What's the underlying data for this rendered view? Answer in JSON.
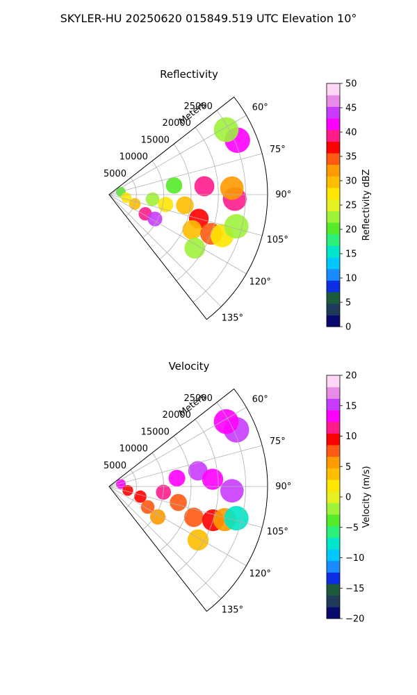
{
  "figure_title": "SKYLER-HU  20250620  015849.519 UTC Elevation 10°",
  "chart_data": [
    {
      "type": "polar_sector",
      "title": "Reflectivity",
      "radial_label": "Meters",
      "radial_ticks": [
        5000,
        10000,
        15000,
        20000,
        25000
      ],
      "radial_tick_labels": [
        "5000",
        "10000",
        "15000",
        "20000",
        "25000"
      ],
      "rmax": 29000,
      "theta_range_deg": [
        52,
        142
      ],
      "theta_ticks_deg": [
        60,
        75,
        90,
        105,
        120,
        135
      ],
      "theta_tick_labels": [
        "60°",
        "75°",
        "90°",
        "105°",
        "120°",
        "135°"
      ],
      "grid": true,
      "colorbar": {
        "label": "Reflectivity dBZ",
        "range": [
          0,
          50
        ],
        "ticks": [
          0,
          5,
          10,
          15,
          20,
          25,
          30,
          35,
          40,
          45,
          50
        ],
        "tick_labels": [
          "0",
          "5",
          "10",
          "15",
          "20",
          "25",
          "30",
          "35",
          "40",
          "45",
          "50"
        ],
        "palette": [
          "#0a0a6e",
          "#1f3a5a",
          "#1e5a3c",
          "#0c2fe6",
          "#1a8cff",
          "#00c8ff",
          "#00e6c8",
          "#2cf07a",
          "#55ea2a",
          "#9ff23a",
          "#e6f023",
          "#ffe600",
          "#ffbe00",
          "#ff9a00",
          "#ff5a14",
          "#ff0000",
          "#ff1d8c",
          "#ff00ff",
          "#c83cff",
          "#e68ce6",
          "#ffd7f5"
        ]
      },
      "echoes": [
        {
          "range_m": 2200,
          "az_deg": 77,
          "value": 20
        },
        {
          "range_m": 3200,
          "az_deg": 100,
          "value": 28
        },
        {
          "range_m": 5000,
          "az_deg": 110,
          "value": 30
        },
        {
          "range_m": 7500,
          "az_deg": 118,
          "value": 40
        },
        {
          "range_m": 9500,
          "az_deg": 118,
          "value": 45
        },
        {
          "range_m": 8000,
          "az_deg": 96,
          "value": 22
        },
        {
          "range_m": 10500,
          "az_deg": 100,
          "value": 28
        },
        {
          "range_m": 14000,
          "az_deg": 98,
          "value": 30
        },
        {
          "range_m": 12000,
          "az_deg": 82,
          "value": 20
        },
        {
          "range_m": 17500,
          "az_deg": 85,
          "value": 40
        },
        {
          "range_m": 17000,
          "az_deg": 105,
          "value": 38
        },
        {
          "range_m": 16500,
          "az_deg": 113,
          "value": 30
        },
        {
          "range_m": 20000,
          "az_deg": 111,
          "value": 35
        },
        {
          "range_m": 22000,
          "az_deg": 110,
          "value": 28
        },
        {
          "range_m": 23000,
          "az_deg": 92,
          "value": 40
        },
        {
          "range_m": 22500,
          "az_deg": 87,
          "value": 33
        },
        {
          "range_m": 24000,
          "az_deg": 104,
          "value": 22
        },
        {
          "range_m": 25500,
          "az_deg": 67,
          "value": 42
        },
        {
          "range_m": 24500,
          "az_deg": 61,
          "value": 22
        },
        {
          "range_m": 18500,
          "az_deg": 122,
          "value": 22
        }
      ]
    },
    {
      "type": "polar_sector",
      "title": "Velocity",
      "radial_label": "Meters",
      "radial_ticks": [
        5000,
        10000,
        15000,
        20000,
        25000
      ],
      "radial_tick_labels": [
        "5000",
        "10000",
        "15000",
        "20000",
        "25000"
      ],
      "rmax": 29000,
      "theta_range_deg": [
        52,
        142
      ],
      "theta_ticks_deg": [
        60,
        75,
        90,
        105,
        120,
        135
      ],
      "theta_tick_labels": [
        "60°",
        "75°",
        "90°",
        "105°",
        "120°",
        "135°"
      ],
      "grid": true,
      "colorbar": {
        "label": "Velocity (m/s)",
        "range": [
          -20,
          20
        ],
        "ticks": [
          -20,
          -15,
          -10,
          -5,
          0,
          5,
          10,
          15,
          20
        ],
        "tick_labels": [
          "−20",
          "−15",
          "−10",
          "−5",
          "0",
          "5",
          "10",
          "15",
          "20"
        ],
        "palette": [
          "#0a0a6e",
          "#1f3a5a",
          "#1e5a3c",
          "#0c2fe6",
          "#1a8cff",
          "#00c8ff",
          "#00e6c8",
          "#2cf07a",
          "#55ea2a",
          "#9ff23a",
          "#e6f023",
          "#ffe600",
          "#ffbe00",
          "#ff9a00",
          "#ff5a14",
          "#ff0000",
          "#ff1d8c",
          "#ff00ff",
          "#c83cff",
          "#e68ce6",
          "#ffd7f5"
        ]
      },
      "echoes": [
        {
          "range_m": 2200,
          "az_deg": 78,
          "value": 14
        },
        {
          "range_m": 3500,
          "az_deg": 102,
          "value": 9
        },
        {
          "range_m": 6000,
          "az_deg": 108,
          "value": 10
        },
        {
          "range_m": 8000,
          "az_deg": 118,
          "value": 8
        },
        {
          "range_m": 10500,
          "az_deg": 122,
          "value": 5
        },
        {
          "range_m": 10000,
          "az_deg": 96,
          "value": 11
        },
        {
          "range_m": 13000,
          "az_deg": 103,
          "value": 7
        },
        {
          "range_m": 12500,
          "az_deg": 83,
          "value": 13
        },
        {
          "range_m": 16500,
          "az_deg": 80,
          "value": 15
        },
        {
          "range_m": 19000,
          "az_deg": 86,
          "value": 13
        },
        {
          "range_m": 16500,
          "az_deg": 110,
          "value": 7
        },
        {
          "range_m": 20000,
          "az_deg": 108,
          "value": 9
        },
        {
          "range_m": 22500,
          "az_deg": 92,
          "value": 15
        },
        {
          "range_m": 22000,
          "az_deg": 106,
          "value": 6
        },
        {
          "range_m": 24000,
          "az_deg": 104,
          "value": -7
        },
        {
          "range_m": 25500,
          "az_deg": 66,
          "value": 16
        },
        {
          "range_m": 24500,
          "az_deg": 61,
          "value": 14
        },
        {
          "range_m": 19000,
          "az_deg": 121,
          "value": 3
        }
      ]
    }
  ]
}
